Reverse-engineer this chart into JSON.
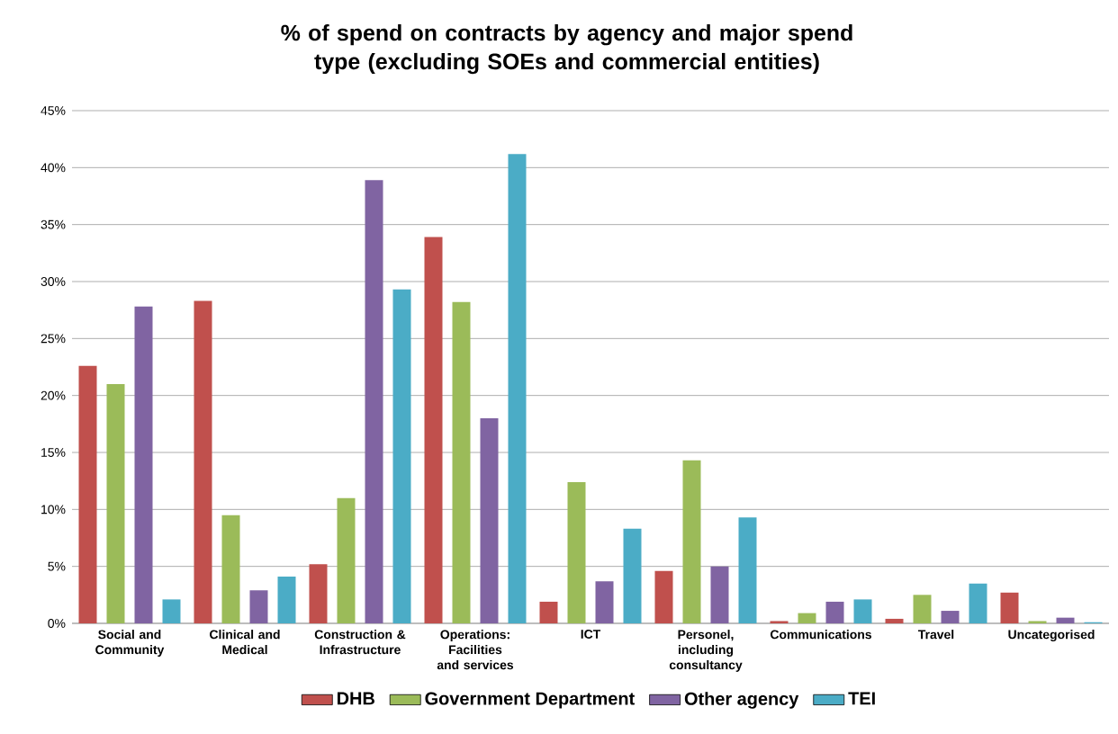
{
  "chart_data": {
    "type": "bar",
    "title": "% of spend on contracts by agency and major spend type (excluding SOEs and commercial entities)",
    "categories": [
      "Social and Community",
      "Clinical and Medical",
      "Construction & Infrastructure",
      "Operations: Facilities and services",
      "ICT",
      "Personel, including consultancy",
      "Communications",
      "Travel",
      "Uncategorised"
    ],
    "series": [
      {
        "name": "DHB",
        "color": "#c0504d",
        "values": [
          22.6,
          28.3,
          5.2,
          33.9,
          1.9,
          4.6,
          0.2,
          0.4,
          2.7
        ]
      },
      {
        "name": "Government Department",
        "color": "#9bbb59",
        "values": [
          21.0,
          9.5,
          11.0,
          28.2,
          12.4,
          14.3,
          0.9,
          2.5,
          0.2
        ]
      },
      {
        "name": "Other agency",
        "color": "#8064a2",
        "values": [
          27.8,
          2.9,
          38.9,
          18.0,
          3.7,
          5.0,
          1.9,
          1.1,
          0.5
        ]
      },
      {
        "name": "TEI",
        "color": "#4bacc6",
        "values": [
          2.1,
          4.1,
          29.3,
          41.2,
          8.3,
          9.3,
          2.1,
          3.5,
          0.1
        ]
      }
    ],
    "ylim": [
      0,
      45
    ],
    "yticks": [
      {
        "value": 0,
        "label": "0%"
      },
      {
        "value": 5,
        "label": "5%"
      },
      {
        "value": 10,
        "label": "10%"
      },
      {
        "value": 15,
        "label": "15%"
      },
      {
        "value": 20,
        "label": "20%"
      },
      {
        "value": 25,
        "label": "25%"
      },
      {
        "value": 30,
        "label": "30%"
      },
      {
        "value": 35,
        "label": "35%"
      },
      {
        "value": 40,
        "label": "40%"
      },
      {
        "value": 45,
        "label": "45%"
      }
    ],
    "grid": "y",
    "legend": "bottom"
  }
}
